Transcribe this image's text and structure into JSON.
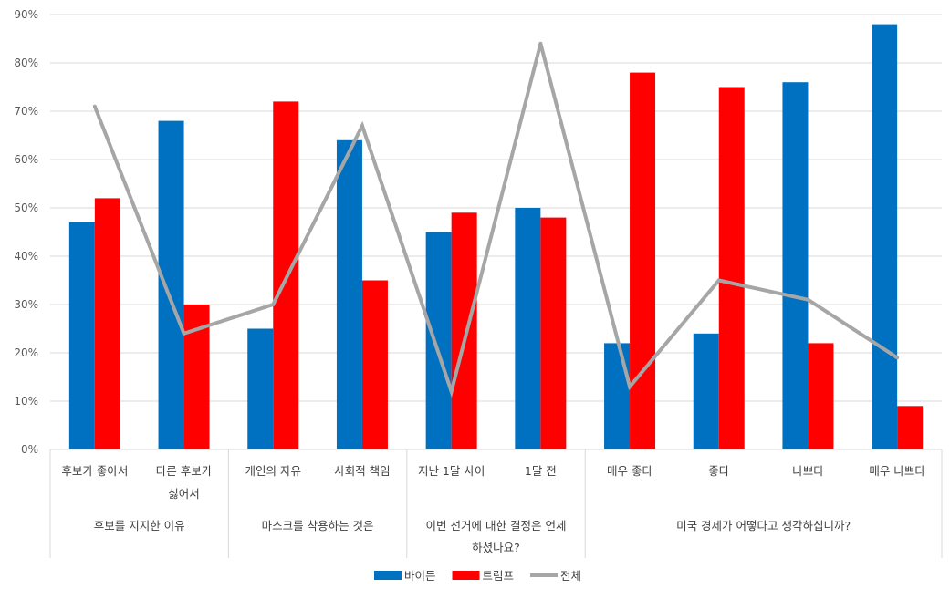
{
  "chart_data": {
    "type": "bar",
    "title": "",
    "xlabel": "",
    "ylabel": "",
    "ylim": [
      0,
      90
    ],
    "ytick_step": 10,
    "ytick_format": "percent",
    "grid": true,
    "legend_position": "bottom",
    "categories": [
      [
        "후보가 좋아서"
      ],
      [
        "다른 후보가",
        "싫어서"
      ],
      [
        "개인의 자유"
      ],
      [
        "사회적 책임"
      ],
      [
        "지난 1달 사이"
      ],
      [
        "1달 전"
      ],
      [
        "매우 좋다"
      ],
      [
        "좋다"
      ],
      [
        "나쁘다"
      ],
      [
        "매우 나쁘다"
      ]
    ],
    "groups": [
      {
        "label": [
          "후보를 지지한 이유"
        ],
        "start": 0,
        "end": 1
      },
      {
        "label": [
          "마스크를 착용하는 것은"
        ],
        "start": 2,
        "end": 3
      },
      {
        "label": [
          "이번 선거에 대한 결정은 언제",
          "하셨나요?"
        ],
        "start": 4,
        "end": 5
      },
      {
        "label": [
          "미국 경제가 어떻다고 생각하십니까?"
        ],
        "start": 6,
        "end": 9
      }
    ],
    "series": [
      {
        "name": "바이든",
        "type": "bar",
        "color": "#0070C0",
        "values": [
          47,
          68,
          25,
          64,
          45,
          50,
          22,
          24,
          76,
          88
        ]
      },
      {
        "name": "트럼프",
        "type": "bar",
        "color": "#FF0000",
        "values": [
          52,
          30,
          72,
          35,
          49,
          48,
          78,
          75,
          22,
          9
        ]
      },
      {
        "name": "전체",
        "type": "line",
        "color": "#A6A6A6",
        "values": [
          71,
          24,
          30,
          67,
          12,
          84,
          13,
          35,
          31,
          19
        ]
      }
    ]
  }
}
